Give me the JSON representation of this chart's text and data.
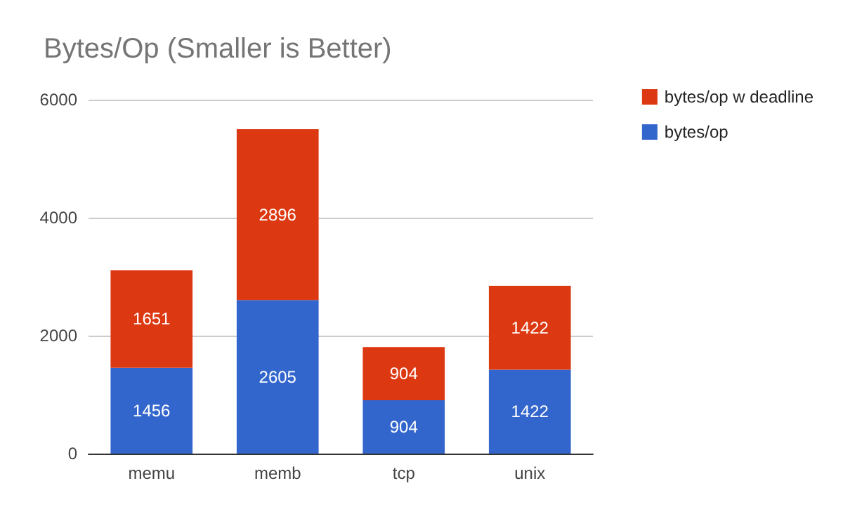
{
  "chart_data": {
    "type": "bar",
    "title": "Bytes/Op (Smaller is Better)",
    "categories": [
      "memu",
      "memb",
      "tcp",
      "unix"
    ],
    "stacked": true,
    "data_labels": true,
    "grid": "y",
    "legend": "top right",
    "ylim": [
      0,
      6000
    ],
    "yticks": [
      0,
      2000,
      4000,
      6000
    ],
    "series": [
      {
        "name": "bytes/op",
        "color": "#3366cc",
        "values": [
          1456,
          2605,
          904,
          1422
        ]
      },
      {
        "name": "bytes/op w deadline",
        "color": "#dc3912",
        "values": [
          1651,
          2896,
          904,
          1422
        ]
      }
    ]
  }
}
